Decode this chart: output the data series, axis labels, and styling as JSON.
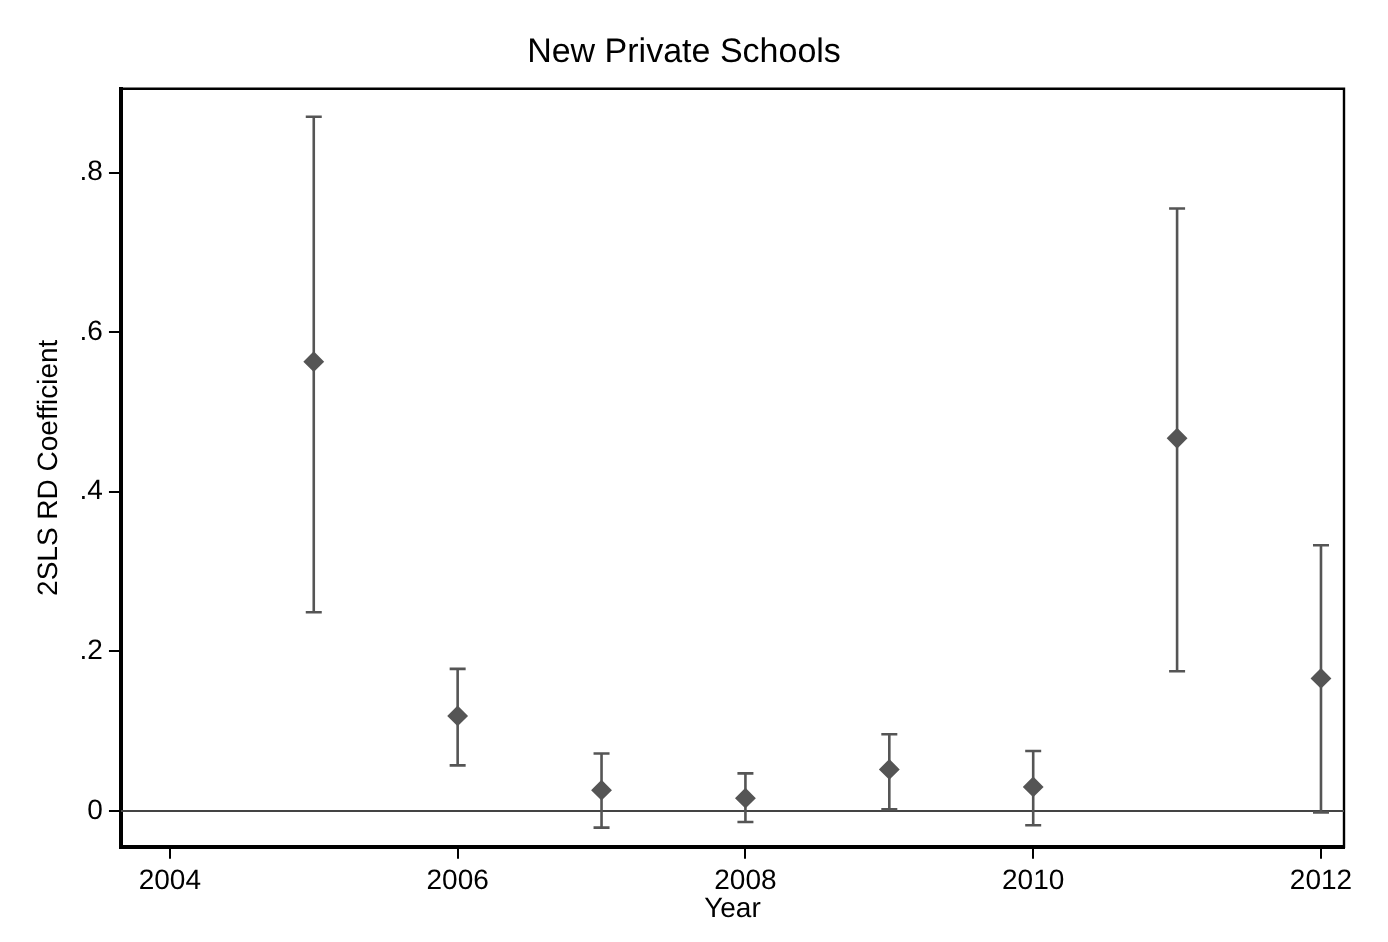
{
  "chart_data": {
    "type": "scatter",
    "title": "New Private Schools",
    "xlabel": "Year",
    "ylabel": "2SLS RD Coefficient",
    "x": [
      2005,
      2006,
      2007,
      2008,
      2009,
      2010,
      2011,
      2012
    ],
    "series": [
      {
        "color": "#555555",
        "values": [
          0.563,
          0.119,
          0.026,
          0.016,
          0.052,
          0.03,
          0.467,
          0.166
        ],
        "errors": [
          [
            0.249,
            0.87
          ],
          [
            0.057,
            0.178
          ],
          [
            -0.021,
            0.072
          ],
          [
            -0.014,
            0.047
          ],
          [
            0.002,
            0.096
          ],
          [
            -0.018,
            0.075
          ],
          [
            0.175,
            0.755
          ],
          [
            -0.002,
            0.333
          ]
        ]
      }
    ],
    "xlim": [
      2003.66,
      2012.16
    ],
    "xticks": [
      2004,
      2006,
      2008,
      2010,
      2012
    ],
    "ylim": [
      -0.045,
      0.905
    ],
    "yticks": [
      0,
      {
        "value": 0.2,
        "label": ".2"
      },
      {
        "value": 0.4,
        "label": ".4"
      },
      {
        "value": 0.6,
        "label": ".6"
      },
      {
        "value": 0.8,
        "label": ".8"
      }
    ],
    "ref_lines": [
      {
        "axis": "y",
        "value": 0,
        "color": "#444444"
      }
    ],
    "marker": "diamond",
    "grid": false,
    "legend": false
  }
}
